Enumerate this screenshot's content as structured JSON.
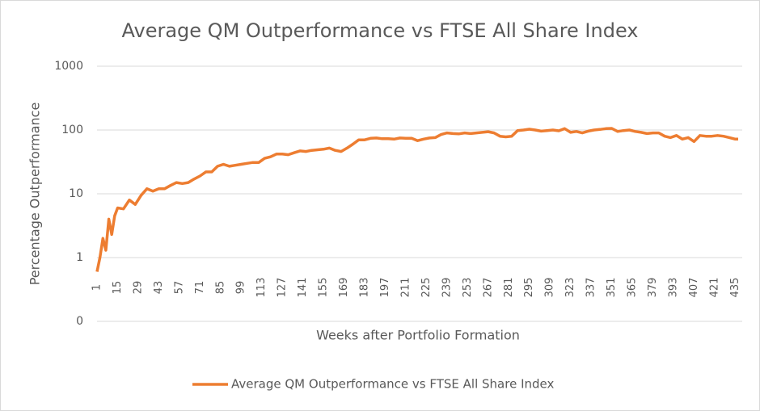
{
  "chart_data": {
    "type": "line",
    "title": "Average QM Outperformance vs FTSE All Share Index",
    "x_label": "Weeks after Portfolio Formation",
    "y_label": "Percentage Outperformance",
    "log_scale_y": true,
    "grid": true,
    "legend": "bottom",
    "xlim": [
      1,
      437
    ],
    "xticks": [
      1,
      15,
      29,
      43,
      57,
      71,
      85,
      99,
      113,
      127,
      141,
      155,
      169,
      183,
      197,
      211,
      225,
      239,
      253,
      267,
      281,
      295,
      309,
      323,
      337,
      351,
      365,
      379,
      393,
      407,
      421,
      435
    ],
    "ylim": [
      0.1,
      1000
    ],
    "yticks": [
      {
        "value": 0.1,
        "label": "0"
      },
      1,
      10,
      100,
      1000
    ],
    "x": [
      1,
      3,
      5,
      7,
      9,
      11,
      13,
      15,
      19,
      23,
      27,
      31,
      35,
      39,
      43,
      47,
      51,
      55,
      59,
      63,
      67,
      71,
      75,
      79,
      83,
      87,
      91,
      95,
      99,
      103,
      107,
      111,
      115,
      119,
      123,
      127,
      131,
      135,
      139,
      143,
      147,
      151,
      155,
      159,
      163,
      167,
      171,
      175,
      179,
      183,
      187,
      191,
      195,
      199,
      203,
      207,
      211,
      215,
      219,
      223,
      227,
      231,
      235,
      239,
      243,
      247,
      251,
      255,
      259,
      263,
      267,
      271,
      275,
      279,
      283,
      287,
      291,
      295,
      299,
      303,
      307,
      311,
      315,
      319,
      323,
      327,
      331,
      335,
      339,
      343,
      347,
      351,
      355,
      359,
      363,
      367,
      371,
      375,
      379,
      383,
      387,
      391,
      395,
      399,
      403,
      407,
      411,
      415,
      419,
      423,
      427,
      431,
      435,
      437
    ],
    "series": [
      {
        "name": "Average QM Outperformance vs FTSE All Share Index",
        "color": "#ed7d31",
        "values": [
          0.6,
          1.0,
          2.0,
          1.3,
          4.0,
          2.3,
          4.5,
          6,
          5.8,
          8,
          6.8,
          9.5,
          12,
          11,
          12,
          12,
          13.5,
          15,
          14.5,
          15,
          17,
          19,
          22,
          22,
          27,
          29,
          27,
          28,
          29,
          30,
          31,
          31,
          36,
          38,
          42,
          42,
          41,
          44,
          47,
          46,
          48,
          49,
          50,
          52,
          48,
          46,
          52,
          60,
          70,
          70,
          74,
          75,
          73,
          73,
          72,
          75,
          74,
          74,
          68,
          72,
          75,
          76,
          85,
          90,
          88,
          87,
          90,
          88,
          90,
          92,
          94,
          90,
          80,
          78,
          80,
          98,
          100,
          103,
          100,
          96,
          98,
          100,
          97,
          105,
          92,
          95,
          90,
          96,
          100,
          102,
          105,
          106,
          95,
          98,
          100,
          95,
          92,
          88,
          90,
          90,
          80,
          76,
          82,
          72,
          76,
          66,
          82,
          80,
          80,
          82,
          80,
          76,
          72,
          72
        ]
      }
    ]
  }
}
